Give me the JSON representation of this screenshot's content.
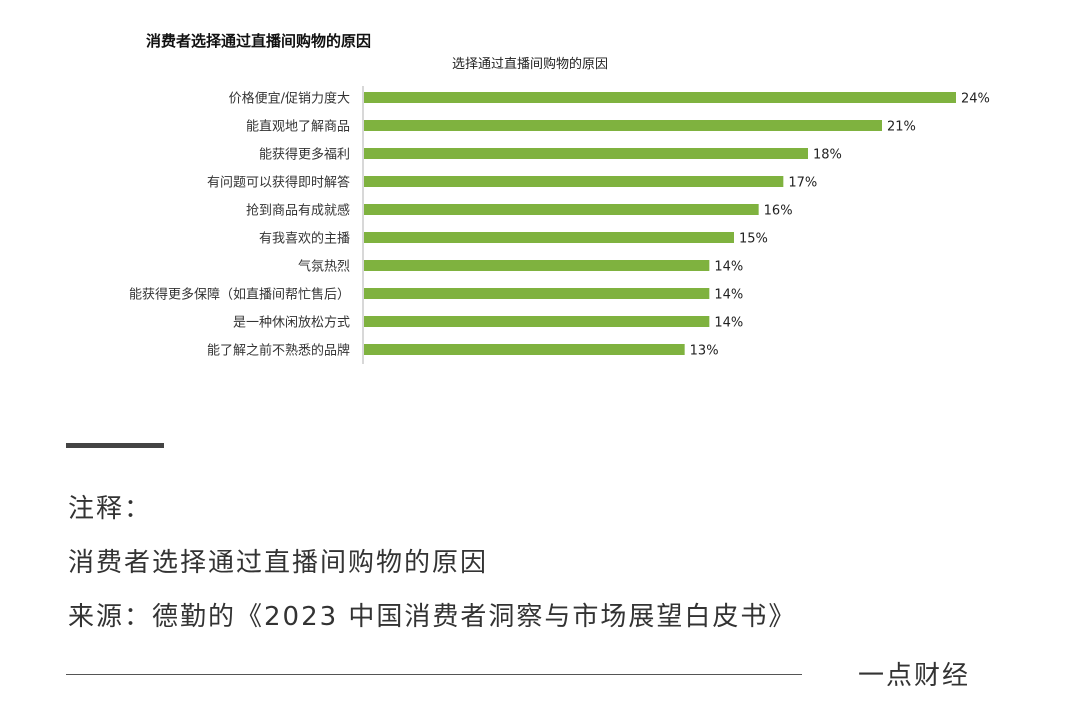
{
  "chart_data": {
    "type": "bar",
    "orientation": "horizontal",
    "title": "消费者选择通过直播间购物的原因",
    "subtitle": "选择通过直播间购物的原因",
    "categories": [
      "价格便宜/促销力度大",
      "能直观地了解商品",
      "能获得更多福利",
      "有问题可以获得即时解答",
      "抢到商品有成就感",
      "有我喜欢的主播",
      "气氛热烈",
      "能获得更多保障（如直播间帮忙售后）",
      "是一种休闲放松方式",
      "能了解之前不熟悉的品牌"
    ],
    "values": [
      24,
      21,
      18,
      17,
      16,
      15,
      14,
      14,
      14,
      13
    ],
    "value_labels": [
      "24%",
      "21%",
      "18%",
      "17%",
      "16%",
      "15%",
      "14%",
      "14%",
      "14%",
      "13%"
    ],
    "unit": "%",
    "xlim": [
      0,
      24
    ],
    "bar_color": "#7fb23f",
    "grid": false
  },
  "notes": {
    "heading": "注释：",
    "description": "消费者选择通过直播间购物的原因",
    "source": "来源：德勤的《2023 中国消费者洞察与市场展望白皮书》"
  },
  "brand": "一点财经"
}
